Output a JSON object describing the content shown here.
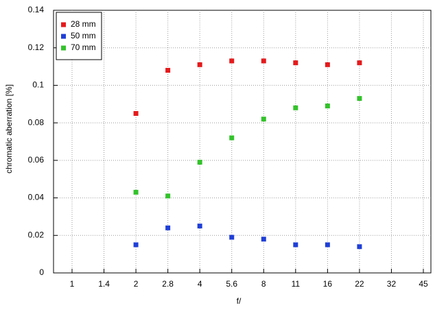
{
  "chart_data": {
    "type": "scatter",
    "x_label": "f/",
    "y_label": "chromatic  aberration [%]",
    "categories": [
      "1",
      "1.4",
      "2",
      "2.8",
      "4",
      "5.6",
      "8",
      "11",
      "16",
      "22",
      "32",
      "45"
    ],
    "series": [
      {
        "name": "28 mm",
        "color": "#e41a1c",
        "values": [
          null,
          null,
          0.085,
          0.108,
          0.111,
          0.113,
          0.113,
          0.112,
          0.111,
          0.112,
          null,
          null
        ]
      },
      {
        "name": "50 mm",
        "color": "#1f3fd6",
        "values": [
          null,
          null,
          0.015,
          0.024,
          0.025,
          0.019,
          0.018,
          0.015,
          0.015,
          0.014,
          null,
          null
        ]
      },
      {
        "name": "70 mm",
        "color": "#33c22b",
        "values": [
          null,
          null,
          0.043,
          0.041,
          0.059,
          0.072,
          0.082,
          0.088,
          0.089,
          0.093,
          null,
          null
        ]
      }
    ],
    "ylim": [
      0,
      0.14
    ],
    "yticks": [
      0,
      0.02,
      0.04,
      0.06,
      0.08,
      0.1,
      0.12,
      0.14
    ],
    "grid": true,
    "legend": "top-left"
  }
}
